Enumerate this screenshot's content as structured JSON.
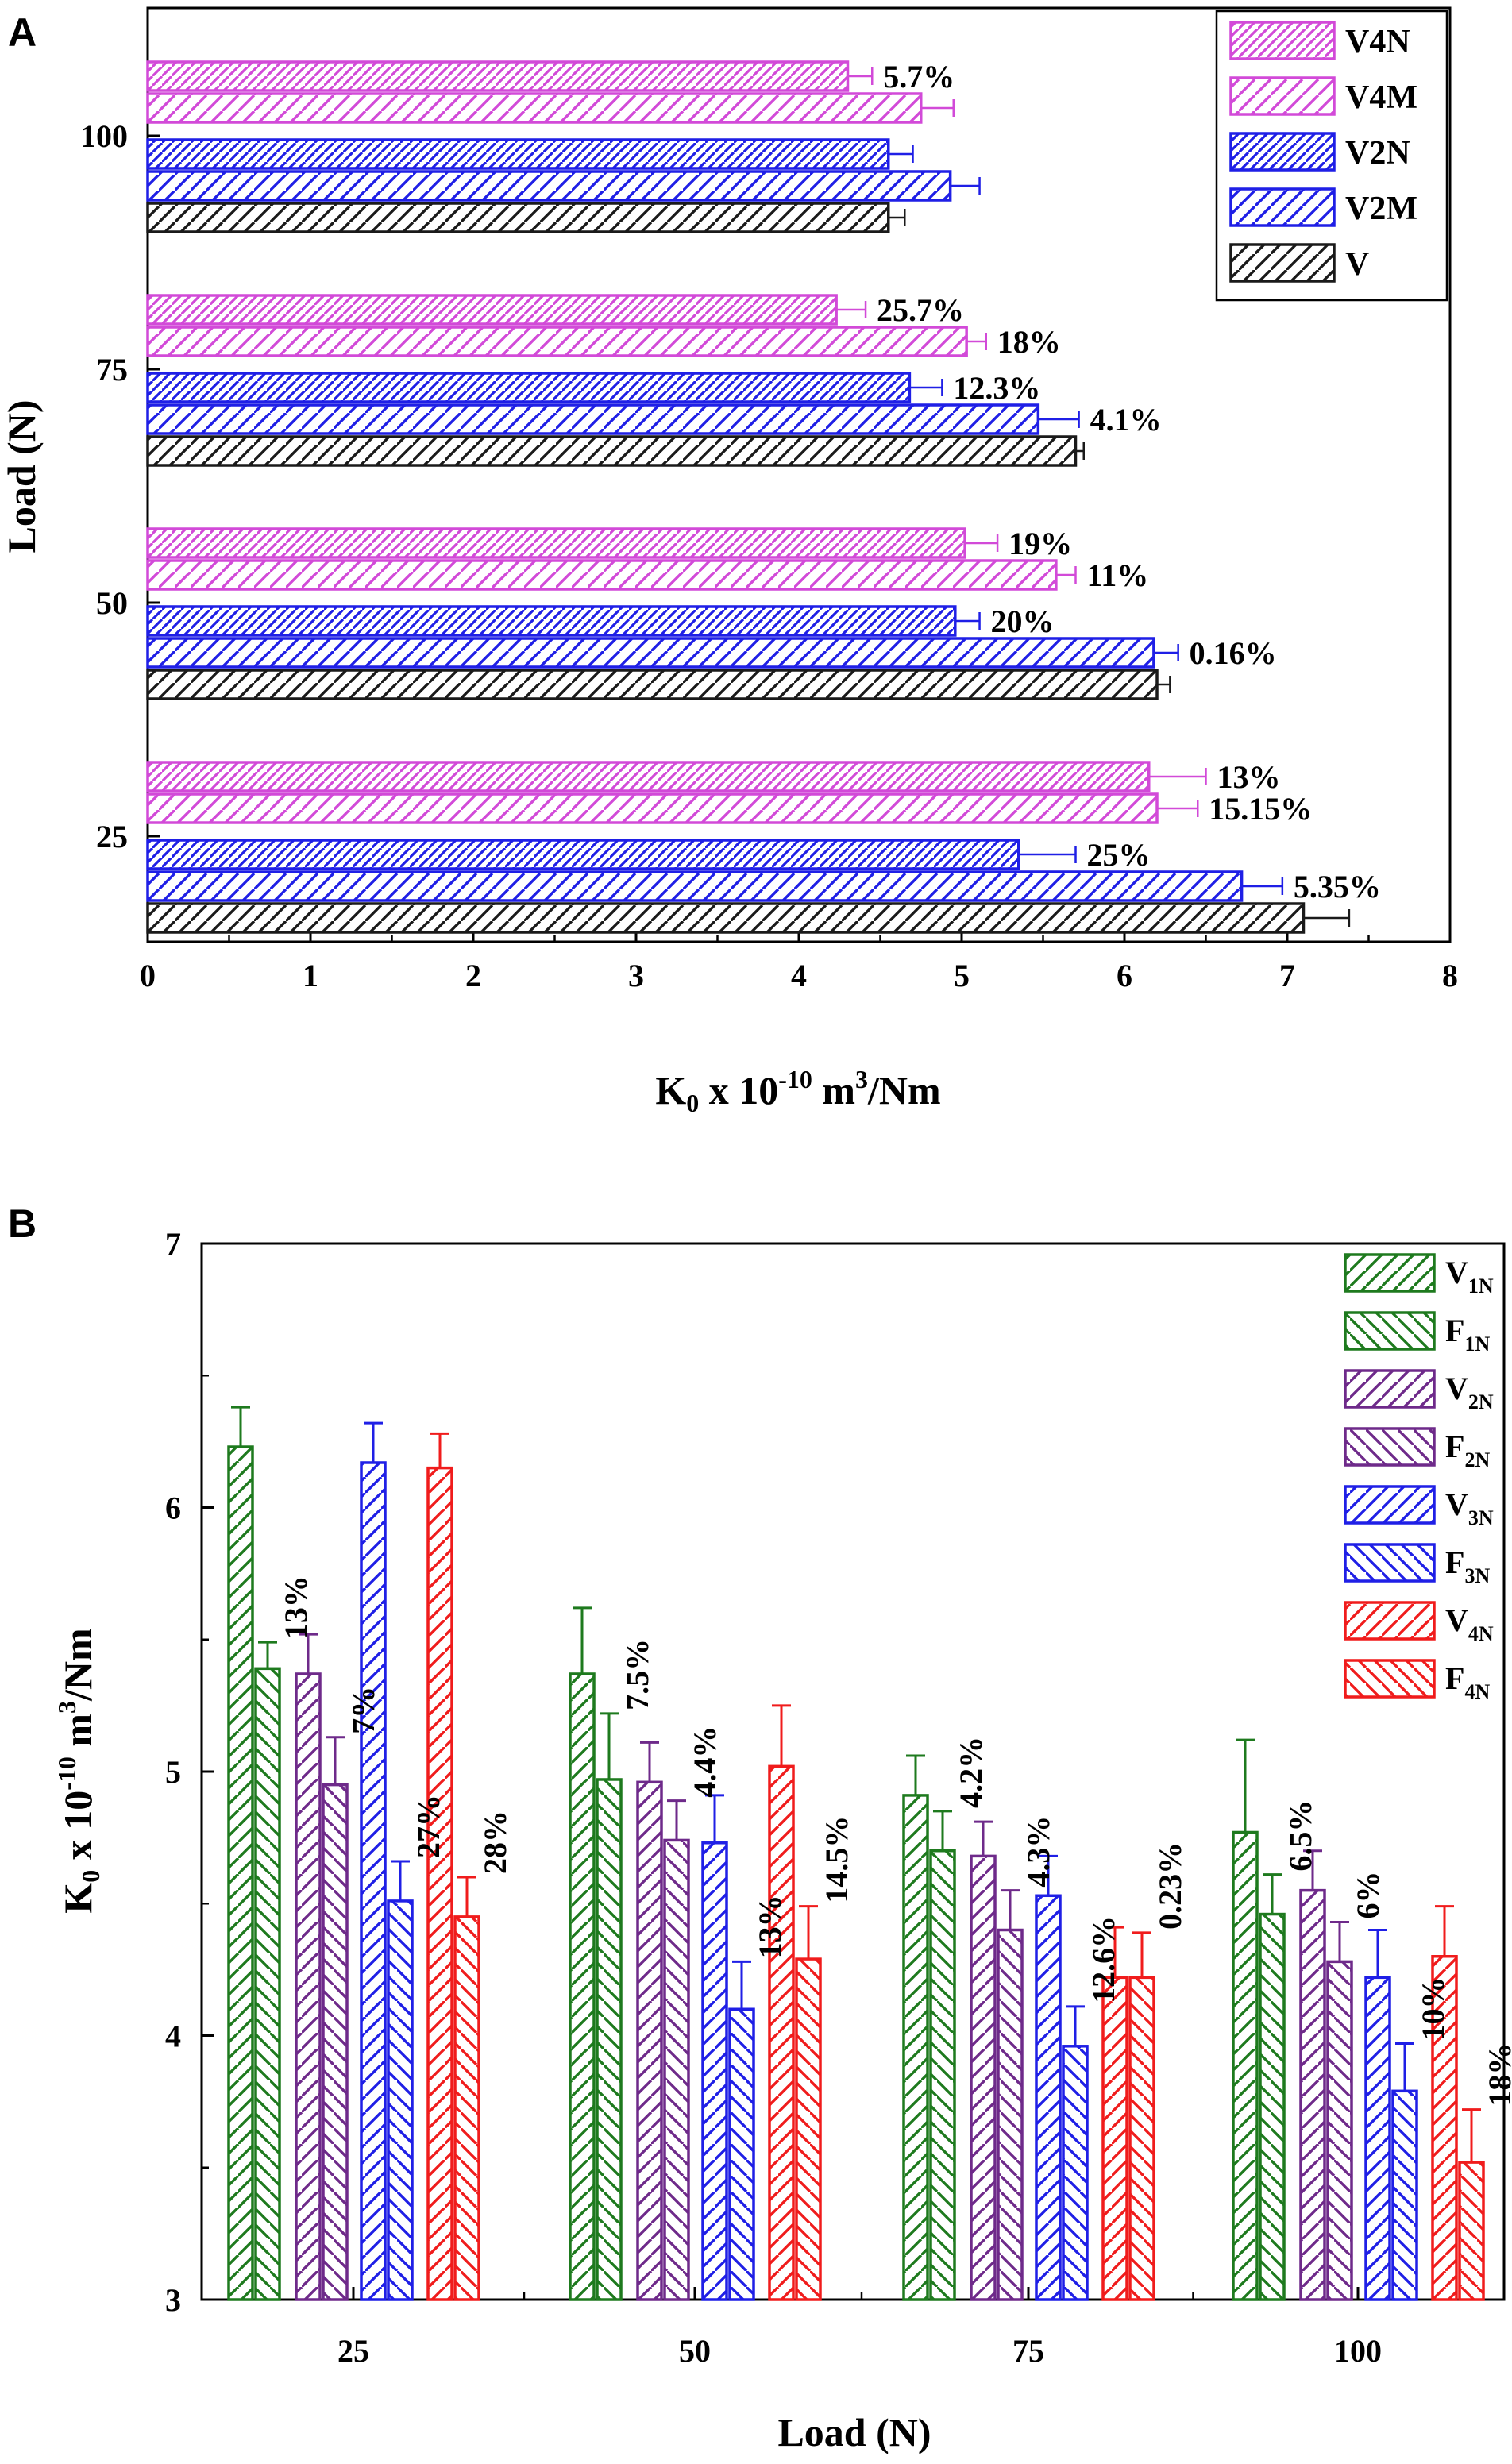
{
  "panels": {
    "A": {
      "letter": "A",
      "xlabel_main": "K",
      "xlabel_sub": "0",
      "xlabel_mid": " x 10",
      "xlabel_sup": "-10",
      "xlabel_unit": " m",
      "xlabel_sup2": "3",
      "xlabel_end": "/Nm",
      "ylabel": "Load (N)"
    },
    "B": {
      "letter": "B",
      "ylabel_main": "K",
      "ylabel_sub": "0",
      "ylabel_mid": " x 10",
      "ylabel_sup": "-10",
      "ylabel_unit": " m",
      "ylabel_sup2": "3",
      "ylabel_end": "/Nm",
      "xlabel": "Load (N)"
    }
  },
  "colors": {
    "black": "#1a1a1a",
    "blue": "#1f1fe6",
    "magenta": "#d24ad8",
    "green": "#1e7a1e",
    "purple": "#6e2a8a",
    "red": "#f01c1c",
    "axis": "#000000"
  },
  "chart_data": [
    {
      "panel": "A",
      "type": "bar",
      "orientation": "horizontal",
      "title": "",
      "xlabel": "K0 x 10^-10 m3/Nm",
      "ylabel": "Load (N)",
      "xlim": [
        0,
        8
      ],
      "xticks": [
        "0",
        "1",
        "2",
        "3",
        "4",
        "5",
        "6",
        "7",
        "8"
      ],
      "categories": [
        "25",
        "50",
        "75",
        "100"
      ],
      "legend_position": "top-right",
      "series": [
        {
          "name": "V",
          "color": "black",
          "hatch": "forward",
          "values": [
            7.1,
            6.2,
            5.7,
            4.55
          ],
          "errors": [
            0.28,
            0.08,
            0.05,
            0.1
          ]
        },
        {
          "name": "V2M",
          "color": "blue",
          "hatch": "forward",
          "values": [
            6.72,
            6.18,
            5.47,
            4.93
          ],
          "errors": [
            0.25,
            0.15,
            0.25,
            0.18
          ]
        },
        {
          "name": "V2N",
          "color": "blue",
          "hatch": "dense",
          "values": [
            5.35,
            4.96,
            4.68,
            4.55
          ],
          "errors": [
            0.35,
            0.15,
            0.2,
            0.15
          ]
        },
        {
          "name": "V4M",
          "color": "magenta",
          "hatch": "forward",
          "values": [
            6.2,
            5.58,
            5.03,
            4.75
          ],
          "errors": [
            0.25,
            0.12,
            0.12,
            0.2
          ]
        },
        {
          "name": "V4N",
          "color": "magenta",
          "hatch": "dense",
          "values": [
            6.15,
            5.02,
            4.23,
            4.3
          ],
          "errors": [
            0.35,
            0.2,
            0.18,
            0.15
          ]
        }
      ],
      "legend_order": [
        "V4N",
        "V4M",
        "V2N",
        "V2M",
        "V"
      ],
      "annotations": [
        {
          "category": "25",
          "series": "V2M",
          "text": "5.35%"
        },
        {
          "category": "25",
          "series": "V2N",
          "text": "25%"
        },
        {
          "category": "25",
          "series": "V4M",
          "text": "15.15%"
        },
        {
          "category": "25",
          "series": "V4N",
          "text": "13%"
        },
        {
          "category": "50",
          "series": "V2M",
          "text": "0.16%"
        },
        {
          "category": "50",
          "series": "V2N",
          "text": "20%"
        },
        {
          "category": "50",
          "series": "V4M",
          "text": "11%"
        },
        {
          "category": "50",
          "series": "V4N",
          "text": "19%"
        },
        {
          "category": "75",
          "series": "V2M",
          "text": "4.1%"
        },
        {
          "category": "75",
          "series": "V2N",
          "text": "12.3%"
        },
        {
          "category": "75",
          "series": "V4M",
          "text": "18%"
        },
        {
          "category": "75",
          "series": "V4N",
          "text": "25.7%"
        },
        {
          "category": "100",
          "series": "V4N",
          "text": "5.7%"
        }
      ]
    },
    {
      "panel": "B",
      "type": "bar",
      "orientation": "vertical",
      "title": "",
      "xlabel": "Load (N)",
      "ylabel": "K0 x 10^-10 m3/Nm",
      "ylim": [
        3,
        7
      ],
      "yticks": [
        "3",
        "4",
        "5",
        "6",
        "7"
      ],
      "categories": [
        "25",
        "50",
        "75",
        "100"
      ],
      "legend_position": "top-right",
      "series": [
        {
          "name": "V",
          "sub": "1N",
          "color": "green",
          "hatch": "forward",
          "values": [
            6.23,
            5.37,
            4.91,
            4.77
          ],
          "errors": [
            0.15,
            0.25,
            0.15,
            0.35
          ]
        },
        {
          "name": "F",
          "sub": "1N",
          "color": "green",
          "hatch": "backward",
          "values": [
            5.39,
            4.97,
            4.7,
            4.46
          ],
          "errors": [
            0.1,
            0.25,
            0.15,
            0.15
          ]
        },
        {
          "name": "V",
          "sub": "2N",
          "color": "purple",
          "hatch": "forward",
          "values": [
            5.37,
            4.96,
            4.68,
            4.55
          ],
          "errors": [
            0.15,
            0.15,
            0.13,
            0.15
          ]
        },
        {
          "name": "F",
          "sub": "2N",
          "color": "purple",
          "hatch": "backward",
          "values": [
            4.95,
            4.74,
            4.4,
            4.28
          ],
          "errors": [
            0.18,
            0.15,
            0.15,
            0.15
          ]
        },
        {
          "name": "V",
          "sub": "3N",
          "color": "blue",
          "hatch": "forward",
          "values": [
            6.17,
            4.73,
            4.53,
            4.22
          ],
          "errors": [
            0.15,
            0.18,
            0.15,
            0.18
          ]
        },
        {
          "name": "F",
          "sub": "3N",
          "color": "blue",
          "hatch": "backward",
          "values": [
            4.51,
            4.1,
            3.96,
            3.79
          ],
          "errors": [
            0.15,
            0.18,
            0.15,
            0.18
          ]
        },
        {
          "name": "V",
          "sub": "4N",
          "color": "red",
          "hatch": "forward",
          "values": [
            6.15,
            5.02,
            4.22,
            4.3
          ],
          "errors": [
            0.13,
            0.23,
            0.19,
            0.19
          ]
        },
        {
          "name": "F",
          "sub": "4N",
          "color": "red",
          "hatch": "backward",
          "values": [
            4.45,
            4.29,
            4.22,
            3.52
          ],
          "errors": [
            0.15,
            0.2,
            0.17,
            0.2
          ]
        }
      ],
      "annotations": [
        {
          "category": "25",
          "pair": 0,
          "text": "13%"
        },
        {
          "category": "25",
          "pair": 1,
          "text": "7%"
        },
        {
          "category": "25",
          "pair": 2,
          "text": "27%"
        },
        {
          "category": "25",
          "pair": 3,
          "text": "28%"
        },
        {
          "category": "50",
          "pair": 0,
          "text": "7.5%"
        },
        {
          "category": "50",
          "pair": 1,
          "text": "4.4%"
        },
        {
          "category": "50",
          "pair": 2,
          "text": "13%"
        },
        {
          "category": "50",
          "pair": 3,
          "text": "14.5%"
        },
        {
          "category": "75",
          "pair": 0,
          "text": "4.2%"
        },
        {
          "category": "75",
          "pair": 1,
          "text": "4.3%"
        },
        {
          "category": "75",
          "pair": 2,
          "text": "12.6%"
        },
        {
          "category": "75",
          "pair": 3,
          "text": "0.23%"
        },
        {
          "category": "100",
          "pair": 0,
          "text": "6.5%"
        },
        {
          "category": "100",
          "pair": 1,
          "text": "6%"
        },
        {
          "category": "100",
          "pair": 2,
          "text": "10%"
        },
        {
          "category": "100",
          "pair": 3,
          "text": "18%"
        }
      ]
    }
  ]
}
